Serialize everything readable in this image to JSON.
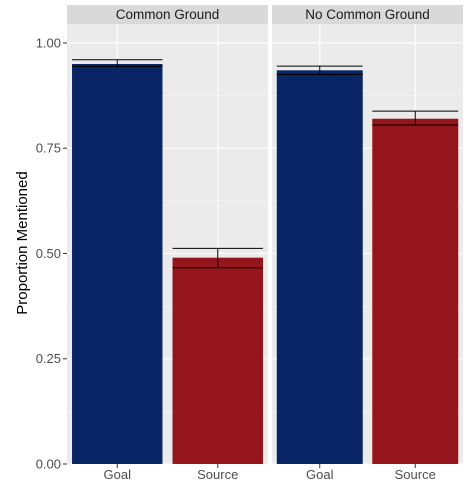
{
  "chart_data": {
    "type": "bar",
    "ylabel": "Proportion Mentioned",
    "ylim": [
      0,
      1.0
    ],
    "yticks": [
      0.0,
      0.25,
      0.5,
      0.75,
      1.0
    ],
    "ytick_labels": [
      "0.00",
      "0.25",
      "0.50",
      "0.75",
      "1.00"
    ],
    "grid": true,
    "facets": [
      {
        "label": "Common Ground",
        "categories": [
          "Goal",
          "Source"
        ],
        "values": [
          0.95,
          0.49
        ],
        "errors": [
          [
            0.944,
            0.96
          ],
          [
            0.466,
            0.512
          ]
        ]
      },
      {
        "label": "No Common Ground",
        "categories": [
          "Goal",
          "Source"
        ],
        "values": [
          0.935,
          0.82
        ],
        "errors": [
          [
            0.925,
            0.945
          ],
          [
            0.805,
            0.838
          ]
        ]
      }
    ],
    "colors": {
      "Goal": "#082566",
      "Source": "#95151c"
    }
  }
}
